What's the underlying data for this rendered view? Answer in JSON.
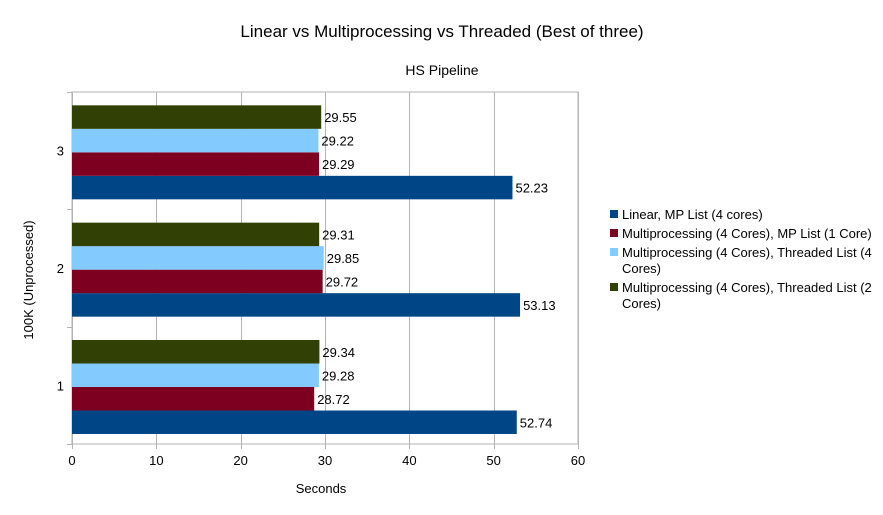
{
  "chart_data": {
    "type": "bar",
    "orientation": "horizontal",
    "title": "Linear vs Multiprocessing vs Threaded (Best of three)",
    "subtitle": "HS Pipeline",
    "xlabel": "Seconds",
    "ylabel": "100K (Unprocessed)",
    "xlim": [
      0,
      60
    ],
    "xticks": [
      0,
      10,
      20,
      30,
      40,
      50,
      60
    ],
    "grid": true,
    "legend_position": "right",
    "categories": [
      "1",
      "2",
      "3"
    ],
    "series": [
      {
        "name": "Linear, MP List (4 cores)",
        "color": "#004586",
        "values": [
          52.74,
          53.13,
          52.23
        ],
        "labels": [
          "52.74",
          "53.13",
          "52.23"
        ]
      },
      {
        "name": "Multiprocessing (4 Cores), MP List (1 Core)",
        "color": "#7e0021",
        "values": [
          28.72,
          29.72,
          29.29
        ],
        "labels": [
          "28.72",
          "29.72",
          "29.29"
        ]
      },
      {
        "name": "Multiprocessing (4 Cores), Threaded List (4 Cores)",
        "color": "#83caff",
        "values": [
          29.28,
          29.85,
          29.22
        ],
        "labels": [
          "29.28",
          "29.85",
          "29.22"
        ]
      },
      {
        "name": "Multiprocessing (4 Cores), Threaded List (2 Cores)",
        "color": "#314004",
        "values": [
          29.34,
          29.31,
          29.55
        ],
        "labels": [
          "29.34",
          "29.31",
          "29.55"
        ]
      }
    ]
  }
}
